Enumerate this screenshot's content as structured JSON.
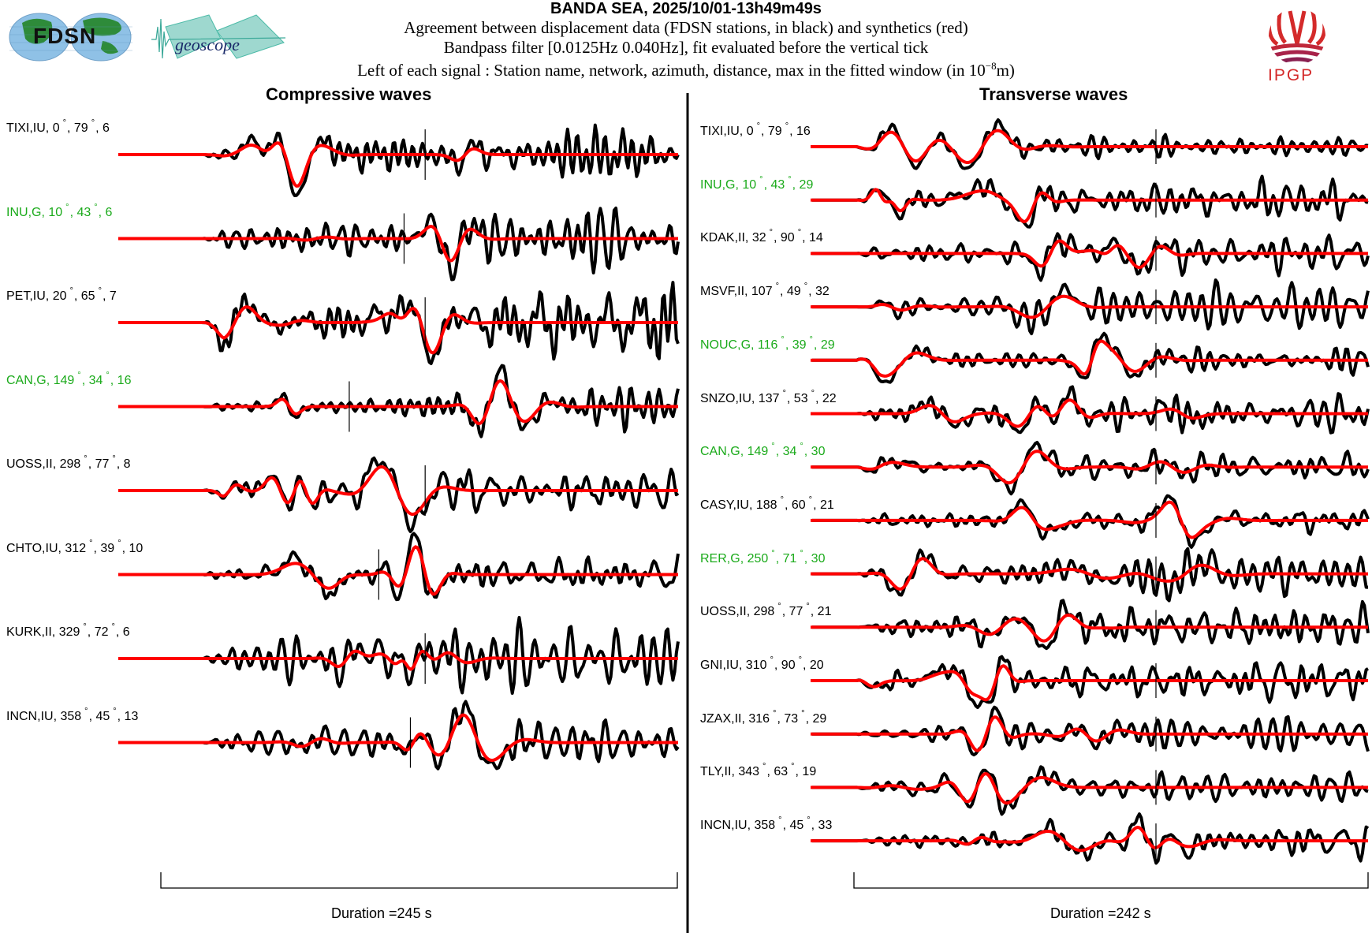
{
  "header": {
    "title": "BANDA SEA, 2025/10/01-13h49m49s",
    "line1": "Agreement between displacement data (FDSN stations, in black) and synthetics (red)",
    "line2": "Bandpass filter [0.0125Hz 0.040Hz], fit evaluated before the vertical tick",
    "line3_prefix": "Left of each signal : Station name, network, azimuth, distance, max in the fitted window (in 10",
    "line3_exp": "−8",
    "line3_suffix": "m)"
  },
  "logos": {
    "fdsn": "FDSN",
    "geoscope": "geoscope",
    "ipgp": "IPGP"
  },
  "colors": {
    "data": "#000000",
    "synthetic": "#ff0000",
    "geoscope_station": "#1aaa1a",
    "ipgp": "#d42a2a"
  },
  "chart_data": [
    {
      "type": "line",
      "title": "Compressive waves",
      "duration_label": "Duration =245 s",
      "duration_s": 245,
      "series_legend": [
        "data (black)",
        "synthetics (red)"
      ],
      "stations": [
        {
          "name": "TIXI",
          "net": "IU",
          "az": "0",
          "dist": "79",
          "max": "6",
          "geoscope": false,
          "tick_s": 125,
          "seed": 11
        },
        {
          "name": "INU",
          "net": "G",
          "az": "10",
          "dist": "43",
          "max": "6",
          "geoscope": true,
          "tick_s": 115,
          "seed": 23
        },
        {
          "name": "PET",
          "net": "IU",
          "az": "20",
          "dist": "65",
          "max": "7",
          "geoscope": false,
          "tick_s": 125,
          "seed": 37
        },
        {
          "name": "CAN",
          "net": "G",
          "az": "149",
          "dist": "34",
          "max": "16",
          "geoscope": true,
          "tick_s": 89,
          "seed": 41
        },
        {
          "name": "UOSS",
          "net": "II",
          "az": "298",
          "dist": "77",
          "max": "8",
          "geoscope": false,
          "tick_s": 125,
          "seed": 53
        },
        {
          "name": "CHTO",
          "net": "IU",
          "az": "312",
          "dist": "39",
          "max": "10",
          "geoscope": false,
          "tick_s": 103,
          "seed": 67
        },
        {
          "name": "KURK",
          "net": "II",
          "az": "329",
          "dist": "72",
          "max": "6",
          "geoscope": false,
          "tick_s": 125,
          "seed": 71
        },
        {
          "name": "INCN",
          "net": "IU",
          "az": "358",
          "dist": "45",
          "max": "13",
          "geoscope": false,
          "tick_s": 118,
          "seed": 83
        }
      ]
    },
    {
      "type": "line",
      "title": "Transverse waves",
      "duration_label": "Duration =242 s",
      "duration_s": 242,
      "series_legend": [
        "data (black)",
        "synthetics (red)"
      ],
      "stations": [
        {
          "name": "TIXI",
          "net": "IU",
          "az": "0",
          "dist": "79",
          "max": "16",
          "geoscope": false,
          "tick_s": 142,
          "seed": 101
        },
        {
          "name": "INU",
          "net": "G",
          "az": "10",
          "dist": "43",
          "max": "29",
          "geoscope": true,
          "tick_s": 142,
          "seed": 113
        },
        {
          "name": "KDAK",
          "net": "II",
          "az": "32",
          "dist": "90",
          "max": "14",
          "geoscope": false,
          "tick_s": 142,
          "seed": 127
        },
        {
          "name": "MSVF",
          "net": "II",
          "az": "107",
          "dist": "49",
          "max": "32",
          "geoscope": false,
          "tick_s": 142,
          "seed": 131
        },
        {
          "name": "NOUC",
          "net": "G",
          "az": "116",
          "dist": "39",
          "max": "29",
          "geoscope": true,
          "tick_s": 142,
          "seed": 149
        },
        {
          "name": "SNZO",
          "net": "IU",
          "az": "137",
          "dist": "53",
          "max": "22",
          "geoscope": false,
          "tick_s": 142,
          "seed": 151
        },
        {
          "name": "CAN",
          "net": "G",
          "az": "149",
          "dist": "34",
          "max": "30",
          "geoscope": true,
          "tick_s": 142,
          "seed": 163
        },
        {
          "name": "CASY",
          "net": "IU",
          "az": "188",
          "dist": "60",
          "max": "21",
          "geoscope": false,
          "tick_s": 142,
          "seed": 173
        },
        {
          "name": "RER",
          "net": "G",
          "az": "250",
          "dist": "71",
          "max": "30",
          "geoscope": true,
          "tick_s": 142,
          "seed": 181
        },
        {
          "name": "UOSS",
          "net": "II",
          "az": "298",
          "dist": "77",
          "max": "21",
          "geoscope": false,
          "tick_s": 142,
          "seed": 191
        },
        {
          "name": "GNI",
          "net": "IU",
          "az": "310",
          "dist": "90",
          "max": "20",
          "geoscope": false,
          "tick_s": 142,
          "seed": 199
        },
        {
          "name": "JZAX",
          "net": "II",
          "az": "316",
          "dist": "73",
          "max": "29",
          "geoscope": false,
          "tick_s": 142,
          "seed": 211
        },
        {
          "name": "TLY",
          "net": "II",
          "az": "343",
          "dist": "63",
          "max": "19",
          "geoscope": false,
          "tick_s": 142,
          "seed": 223
        },
        {
          "name": "INCN",
          "net": "IU",
          "az": "358",
          "dist": "45",
          "max": "33",
          "geoscope": false,
          "tick_s": 142,
          "seed": 227
        }
      ]
    }
  ]
}
